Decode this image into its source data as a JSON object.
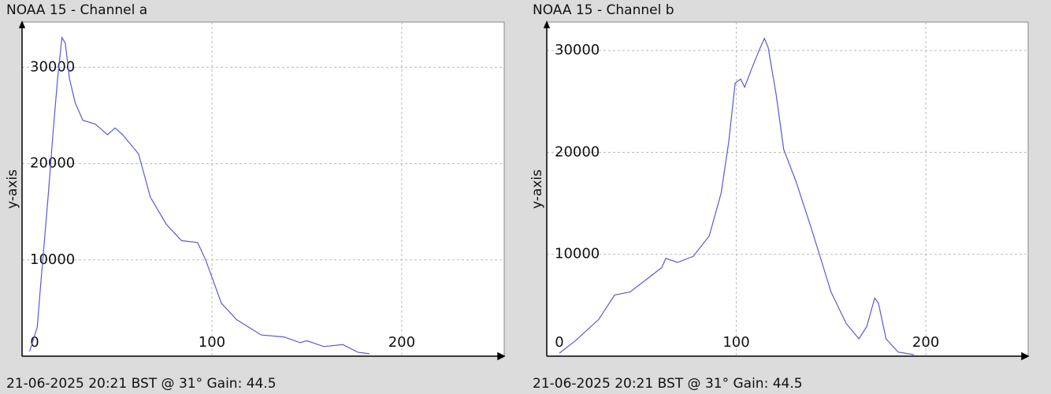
{
  "chart_data": [
    {
      "type": "line",
      "title": "NOAA 15 - Channel a",
      "y_label": "y-axis",
      "annotation": "21-06-2025 20:21 BST @ 31° Gain: 44.5",
      "xlim": [
        0,
        254
      ],
      "ylim": [
        0,
        34700
      ],
      "xticks": [
        0,
        100,
        200
      ],
      "yticks": [
        10000,
        20000,
        30000
      ],
      "grid": true,
      "series": [
        {
          "color": "#5a5ad0",
          "x": [
            4,
            8,
            9.5,
            13.7,
            16.6,
            18.7,
            21,
            22.8,
            25,
            28,
            32,
            38.6,
            45,
            49,
            53,
            61.4,
            67.6,
            76,
            84,
            92.5,
            96.7,
            105,
            113,
            126,
            138,
            146.5,
            150,
            159,
            169,
            177,
            183
          ],
          "values": [
            500,
            3000,
            6700,
            16500,
            23900,
            28800,
            33100,
            32500,
            28800,
            26300,
            24500,
            24100,
            23000,
            23700,
            23000,
            21000,
            16500,
            13700,
            12000,
            11800,
            10000,
            5500,
            3800,
            2200,
            2000,
            1400,
            1600,
            1000,
            1200,
            400,
            250
          ]
        }
      ]
    },
    {
      "type": "line",
      "title": "NOAA 15 - Channel b",
      "y_label": "y-axis",
      "annotation": "21-06-2025 20:21 BST @ 31° Gain: 44.5",
      "xlim": [
        0,
        254
      ],
      "ylim": [
        0,
        32790
      ],
      "xticks": [
        0,
        100,
        200
      ],
      "yticks": [
        10000,
        20000,
        30000
      ],
      "grid": true,
      "series": [
        {
          "color": "#5a5ad0",
          "x": [
            6.7,
            15,
            27.4,
            35.8,
            44,
            52.4,
            60.7,
            62.8,
            69,
            77.3,
            85.7,
            92,
            96,
            99.4,
            102.3,
            104.4,
            108.5,
            112.7,
            114.8,
            116.8,
            121,
            125,
            131.4,
            139.7,
            146,
            150,
            158,
            164.7,
            168.8,
            173,
            175,
            179,
            185.4,
            193.8
          ],
          "values": [
            300,
            1500,
            3600,
            6000,
            6300,
            7500,
            8700,
            9600,
            9200,
            9800,
            11800,
            16000,
            21000,
            26800,
            27200,
            26400,
            28400,
            30300,
            31200,
            30300,
            25700,
            20300,
            17200,
            12500,
            8700,
            6300,
            3200,
            1700,
            2900,
            5700,
            5200,
            1700,
            400,
            150
          ]
        }
      ]
    }
  ]
}
